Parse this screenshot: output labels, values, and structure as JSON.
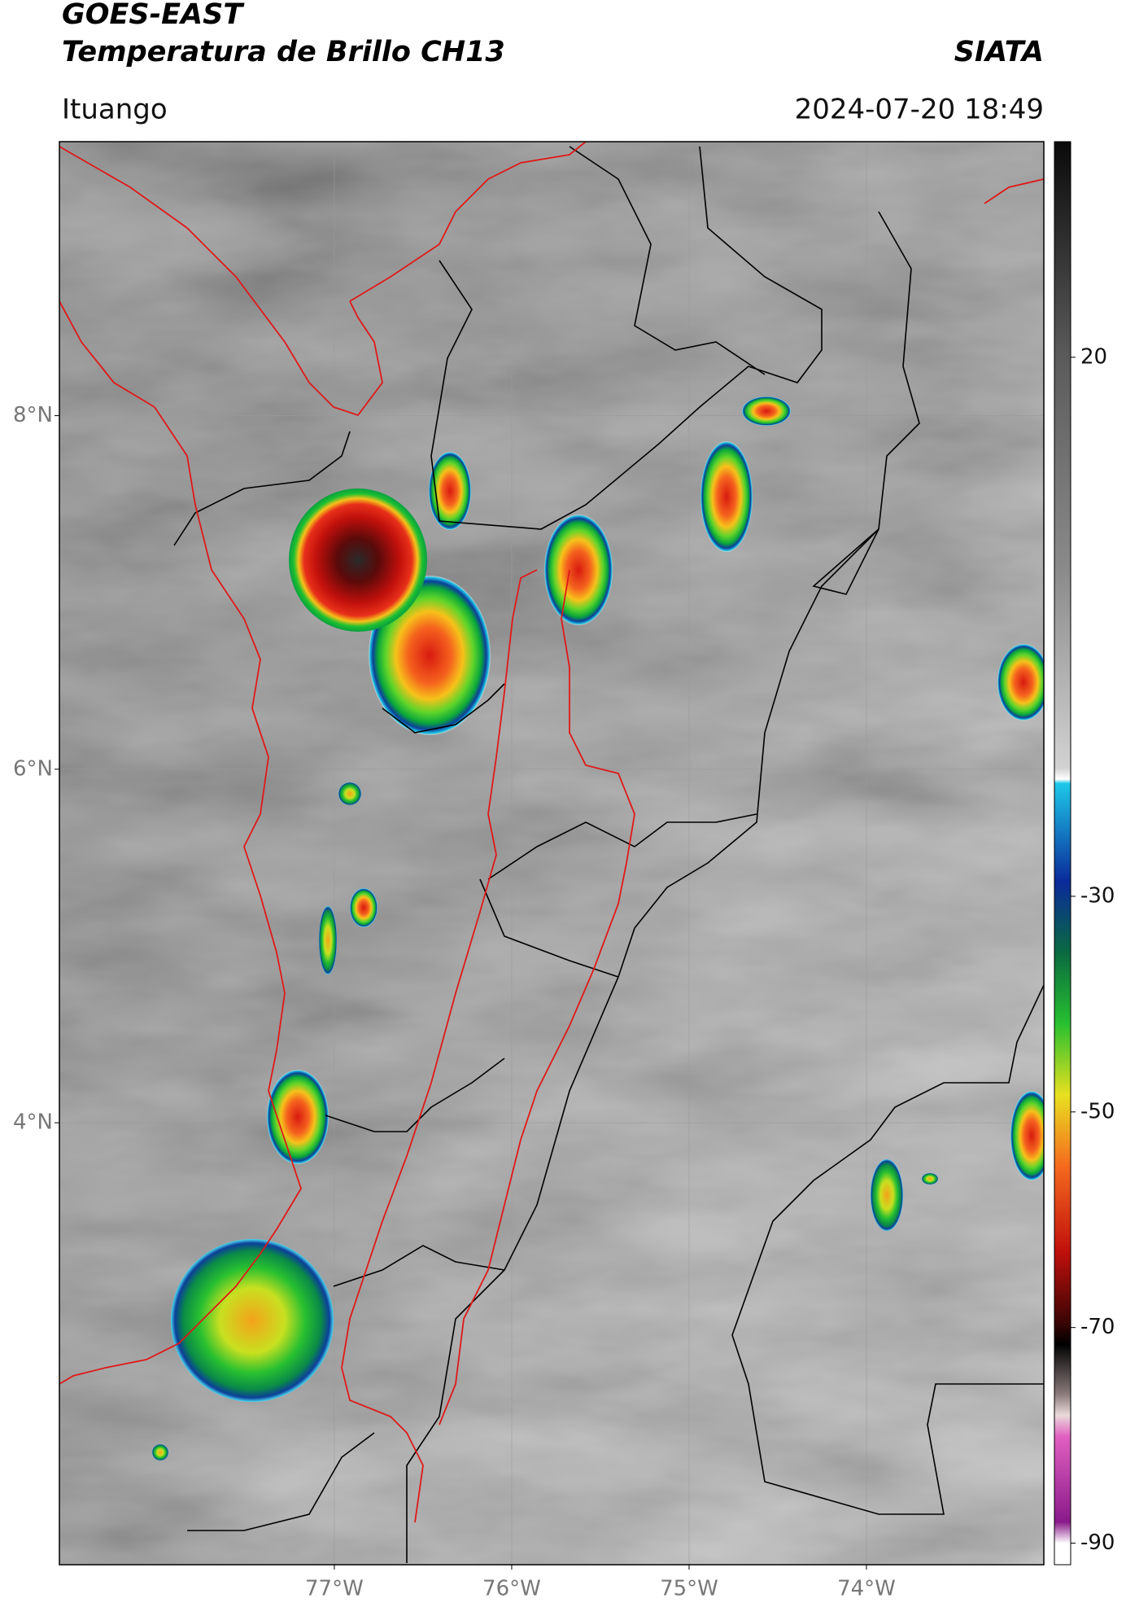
{
  "header": {
    "satellite": "GOES-EAST",
    "product": "Temperatura de Brillo CH13",
    "agency": "SIATA",
    "location": "Ituango",
    "timestamp": "2024-07-20 18:49"
  },
  "map": {
    "xlim": [
      -78.55,
      -73.0
    ],
    "ylim": [
      1.5,
      9.55
    ],
    "xticks": [
      {
        "value": -77,
        "label": "77°W"
      },
      {
        "value": -76,
        "label": "76°W"
      },
      {
        "value": -75,
        "label": "75°W"
      },
      {
        "value": -74,
        "label": "74°W"
      }
    ],
    "yticks": [
      {
        "value": 8,
        "label": "8°N"
      },
      {
        "value": 6,
        "label": "6°N"
      },
      {
        "value": 4,
        "label": "4°N"
      }
    ],
    "grid": true
  },
  "colorbar": {
    "lim": [
      -92,
      40
    ],
    "ticks": [
      20,
      -30,
      -50,
      -70,
      -90
    ]
  }
}
